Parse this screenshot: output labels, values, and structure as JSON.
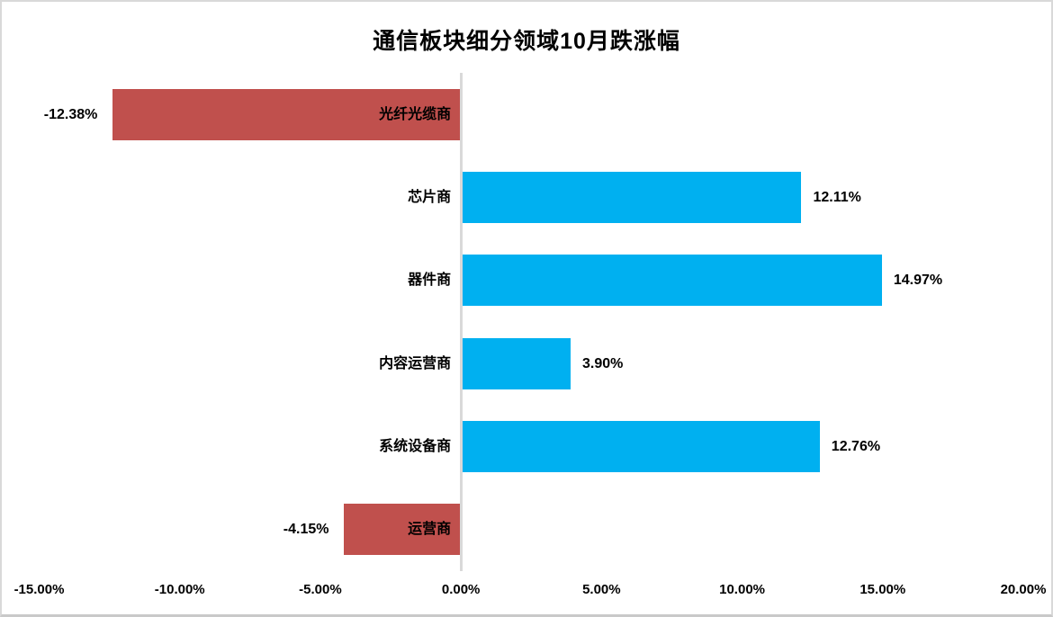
{
  "chart_data": {
    "type": "bar",
    "orientation": "horizontal",
    "title": "通信板块细分领域10月跌涨幅",
    "categories": [
      "光纤光缆商",
      "芯片商",
      "器件商",
      "内容运营商",
      "系统设备商",
      "运营商"
    ],
    "values": [
      -12.38,
      12.11,
      14.97,
      3.9,
      12.76,
      -4.15
    ],
    "data_labels": [
      "-12.38%",
      "12.11%",
      "14.97%",
      "3.90%",
      "12.76%",
      "-4.15%"
    ],
    "xlim": [
      -15,
      20
    ],
    "x_tick_values": [
      -15,
      -10,
      -5,
      0,
      5,
      10,
      15,
      20
    ],
    "x_tick_labels": [
      "-15.00%",
      "-10.00%",
      "-5.00%",
      "0.00%",
      "5.00%",
      "10.00%",
      "15.00%",
      "20.00%"
    ],
    "grid": "none",
    "legend": "none",
    "value_axis_line": "vertical-at-zero",
    "colors": {
      "positive_bar": "#00B0F0",
      "negative_bar": "#C0504D",
      "zero_axis_line": "#D9D9D9",
      "text": "#000000",
      "background": "#FFFFFF",
      "frame_border": "#D9D9D9"
    }
  }
}
